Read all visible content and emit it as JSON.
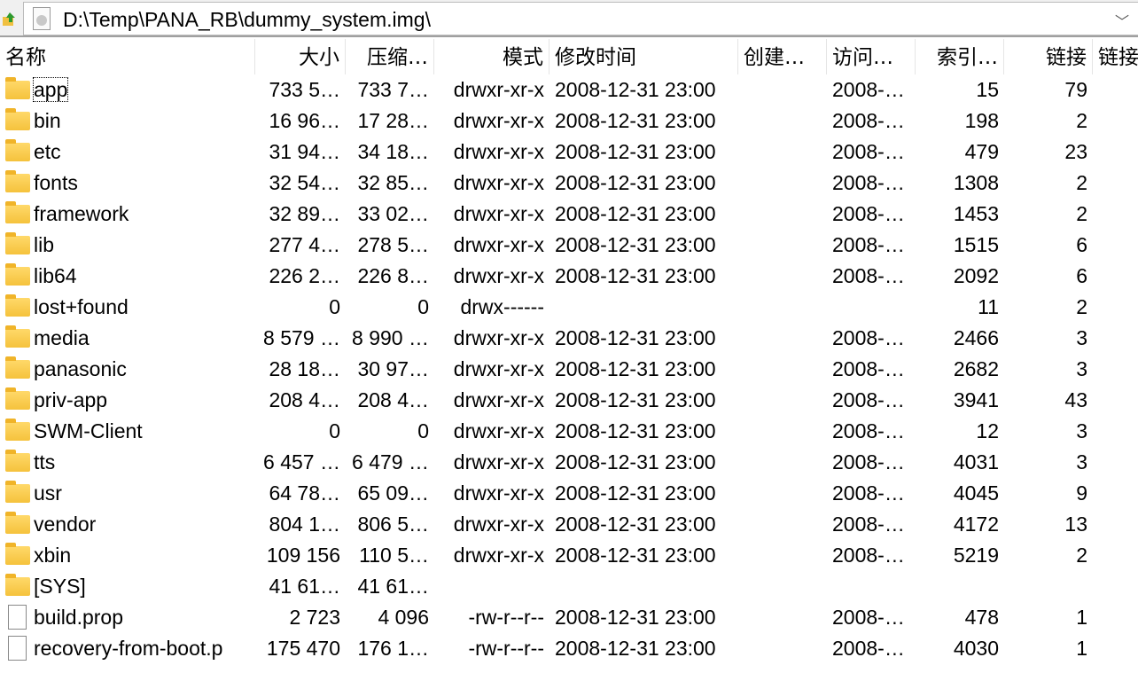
{
  "address": {
    "path": "D:\\Temp\\PANA_RB\\dummy_system.img\\"
  },
  "columns": [
    "名称",
    "大小",
    "压缩…",
    "模式",
    "修改时间",
    "创建…",
    "访问…",
    "索引…",
    "链接",
    "链接"
  ],
  "rows": [
    {
      "type": "folder",
      "name": "app",
      "size": "733 5…",
      "packed": "733 7…",
      "mode": "drwxr-xr-x",
      "mtime": "2008-12-31 23:00",
      "ctime": "",
      "atime": "2008-…",
      "index": "15",
      "links": "79"
    },
    {
      "type": "folder",
      "name": "bin",
      "size": "16 96…",
      "packed": "17 28…",
      "mode": "drwxr-xr-x",
      "mtime": "2008-12-31 23:00",
      "ctime": "",
      "atime": "2008-…",
      "index": "198",
      "links": "2"
    },
    {
      "type": "folder",
      "name": "etc",
      "size": "31 94…",
      "packed": "34 18…",
      "mode": "drwxr-xr-x",
      "mtime": "2008-12-31 23:00",
      "ctime": "",
      "atime": "2008-…",
      "index": "479",
      "links": "23"
    },
    {
      "type": "folder",
      "name": "fonts",
      "size": "32 54…",
      "packed": "32 85…",
      "mode": "drwxr-xr-x",
      "mtime": "2008-12-31 23:00",
      "ctime": "",
      "atime": "2008-…",
      "index": "1308",
      "links": "2"
    },
    {
      "type": "folder",
      "name": "framework",
      "size": "32 89…",
      "packed": "33 02…",
      "mode": "drwxr-xr-x",
      "mtime": "2008-12-31 23:00",
      "ctime": "",
      "atime": "2008-…",
      "index": "1453",
      "links": "2"
    },
    {
      "type": "folder",
      "name": "lib",
      "size": "277 4…",
      "packed": "278 5…",
      "mode": "drwxr-xr-x",
      "mtime": "2008-12-31 23:00",
      "ctime": "",
      "atime": "2008-…",
      "index": "1515",
      "links": "6"
    },
    {
      "type": "folder",
      "name": "lib64",
      "size": "226 2…",
      "packed": "226 8…",
      "mode": "drwxr-xr-x",
      "mtime": "2008-12-31 23:00",
      "ctime": "",
      "atime": "2008-…",
      "index": "2092",
      "links": "6"
    },
    {
      "type": "folder",
      "name": "lost+found",
      "size": "0",
      "packed": "0",
      "mode": "drwx------",
      "mtime": "",
      "ctime": "",
      "atime": "",
      "index": "11",
      "links": "2"
    },
    {
      "type": "folder",
      "name": "media",
      "size": "8 579 …",
      "packed": "8 990 …",
      "mode": "drwxr-xr-x",
      "mtime": "2008-12-31 23:00",
      "ctime": "",
      "atime": "2008-…",
      "index": "2466",
      "links": "3"
    },
    {
      "type": "folder",
      "name": "panasonic",
      "size": "28 18…",
      "packed": "30 97…",
      "mode": "drwxr-xr-x",
      "mtime": "2008-12-31 23:00",
      "ctime": "",
      "atime": "2008-…",
      "index": "2682",
      "links": "3"
    },
    {
      "type": "folder",
      "name": "priv-app",
      "size": "208 4…",
      "packed": "208 4…",
      "mode": "drwxr-xr-x",
      "mtime": "2008-12-31 23:00",
      "ctime": "",
      "atime": "2008-…",
      "index": "3941",
      "links": "43"
    },
    {
      "type": "folder",
      "name": "SWM-Client",
      "size": "0",
      "packed": "0",
      "mode": "drwxr-xr-x",
      "mtime": "2008-12-31 23:00",
      "ctime": "",
      "atime": "2008-…",
      "index": "12",
      "links": "3"
    },
    {
      "type": "folder",
      "name": "tts",
      "size": "6 457 …",
      "packed": "6 479 …",
      "mode": "drwxr-xr-x",
      "mtime": "2008-12-31 23:00",
      "ctime": "",
      "atime": "2008-…",
      "index": "4031",
      "links": "3"
    },
    {
      "type": "folder",
      "name": "usr",
      "size": "64 78…",
      "packed": "65 09…",
      "mode": "drwxr-xr-x",
      "mtime": "2008-12-31 23:00",
      "ctime": "",
      "atime": "2008-…",
      "index": "4045",
      "links": "9"
    },
    {
      "type": "folder",
      "name": "vendor",
      "size": "804 1…",
      "packed": "806 5…",
      "mode": "drwxr-xr-x",
      "mtime": "2008-12-31 23:00",
      "ctime": "",
      "atime": "2008-…",
      "index": "4172",
      "links": "13"
    },
    {
      "type": "folder",
      "name": "xbin",
      "size": "109 156",
      "packed": "110 5…",
      "mode": "drwxr-xr-x",
      "mtime": "2008-12-31 23:00",
      "ctime": "",
      "atime": "2008-…",
      "index": "5219",
      "links": "2"
    },
    {
      "type": "folder",
      "name": "[SYS]",
      "size": "41 61…",
      "packed": "41 61…",
      "mode": "",
      "mtime": "",
      "ctime": "",
      "atime": "",
      "index": "",
      "links": ""
    },
    {
      "type": "file",
      "name": "build.prop",
      "size": "2 723",
      "packed": "4 096",
      "mode": "-rw-r--r--",
      "mtime": "2008-12-31 23:00",
      "ctime": "",
      "atime": "2008-…",
      "index": "478",
      "links": "1"
    },
    {
      "type": "file",
      "name": "recovery-from-boot.p",
      "size": "175 470",
      "packed": "176 1…",
      "mode": "-rw-r--r--",
      "mtime": "2008-12-31 23:00",
      "ctime": "",
      "atime": "2008-…",
      "index": "4030",
      "links": "1"
    }
  ]
}
